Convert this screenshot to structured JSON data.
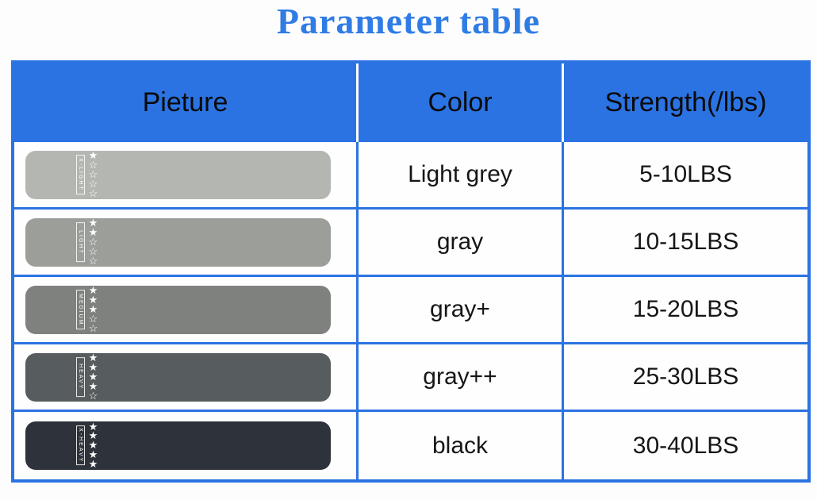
{
  "title": "Parameter table",
  "colors": {
    "title_blue": "#2f7ce4",
    "header_blue": "#2b73e2",
    "grid_blue": "#2b73e2"
  },
  "table": {
    "headers": [
      "Pieture",
      "Color",
      "Strength(/lbs)"
    ],
    "rows": [
      {
        "band_label": "X-LIGHT",
        "stars": "★☆☆☆☆",
        "band_color": "#b4b7b1",
        "color_name": "Light grey",
        "strength": "5-10LBS"
      },
      {
        "band_label": "LIGHT",
        "stars": "★★☆☆☆",
        "band_color": "#9c9e9a",
        "color_name": "gray",
        "strength": "10-15LBS"
      },
      {
        "band_label": "MEDIUM",
        "stars": "★★★☆☆",
        "band_color": "#7e817d",
        "color_name": "gray+",
        "strength": "15-20LBS"
      },
      {
        "band_label": "HEAVY",
        "stars": "★★★★☆",
        "band_color": "#575c5e",
        "color_name": "gray++",
        "strength": "25-30LBS"
      },
      {
        "band_label": "X-HEAVY",
        "stars": "★★★★★",
        "band_color": "#2e333b",
        "color_name": "black",
        "strength": "30-40LBS"
      }
    ]
  }
}
